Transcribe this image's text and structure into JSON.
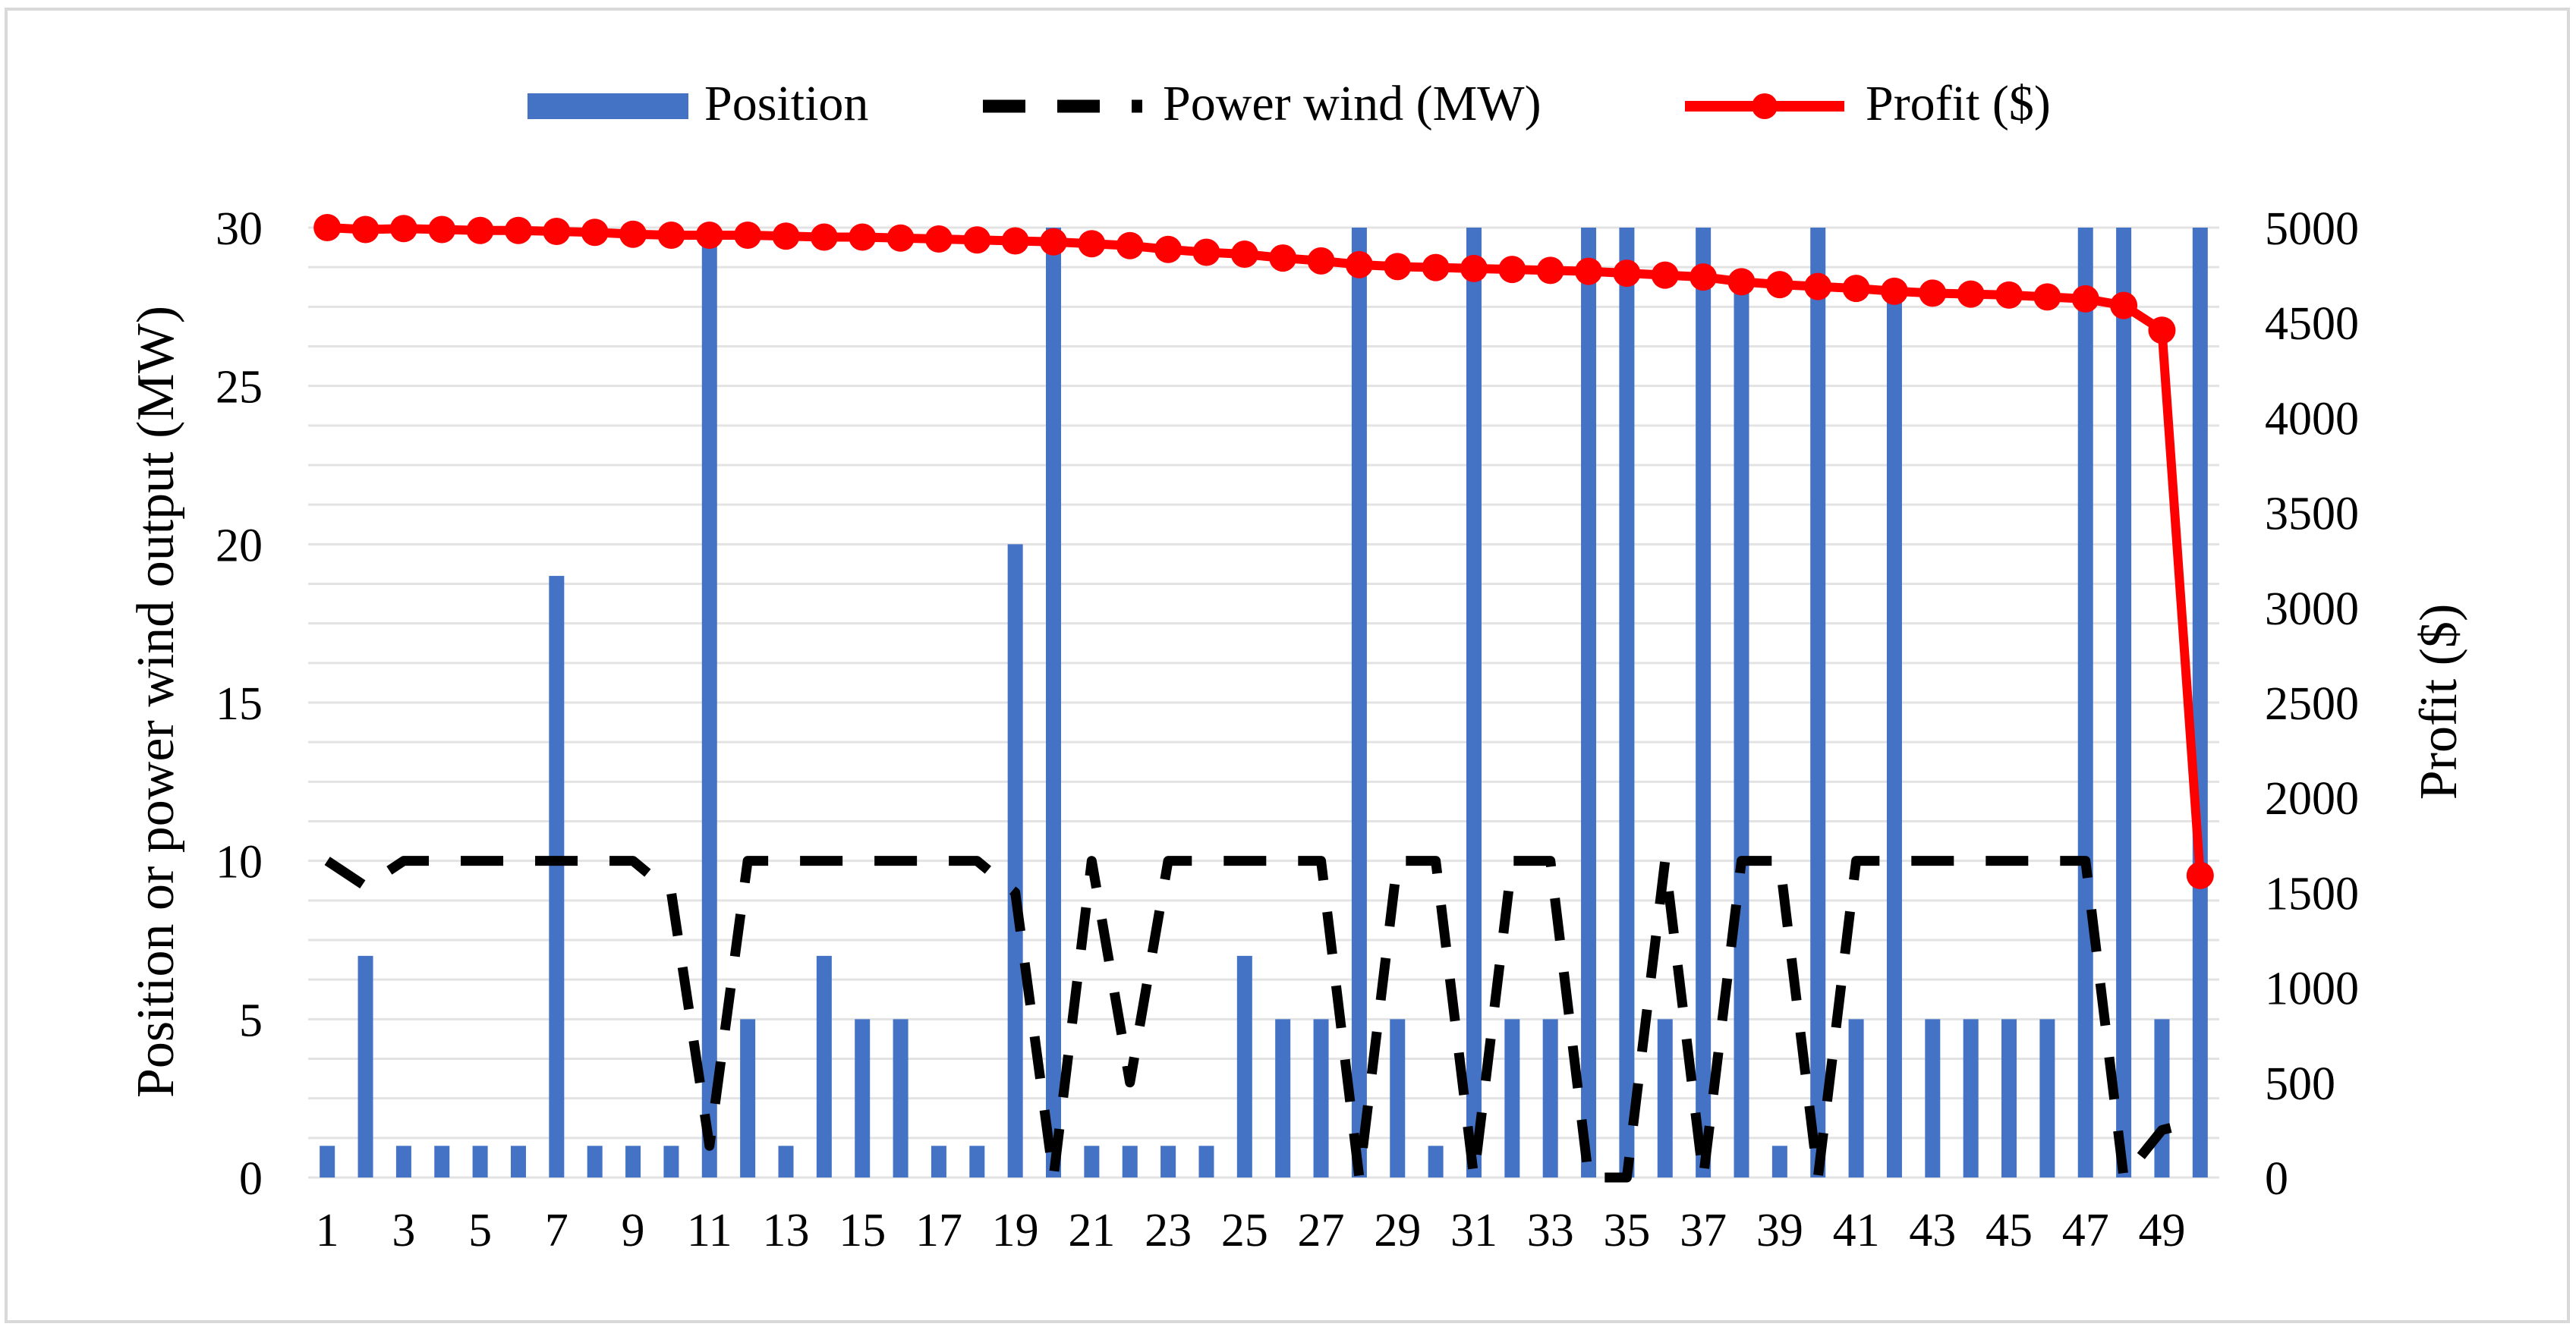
{
  "chart_data": {
    "type": "bar+line",
    "legend": [
      {
        "name": "Position",
        "kind": "bar",
        "color": "#4472C4"
      },
      {
        "name": "Power wind (MW)",
        "kind": "dashed-line",
        "color": "#000000"
      },
      {
        "name": "Profit ($)",
        "kind": "line-marker",
        "color": "#FF0000"
      }
    ],
    "legend_placement": "top-center",
    "ylabel_left": "Position or power wind output (MW)",
    "ylabel_right": "Profit ($)",
    "y_left_range": [
      0,
      30
    ],
    "y_right_range": [
      0,
      5000
    ],
    "y_left_ticks": [
      0,
      5,
      10,
      15,
      20,
      25,
      30
    ],
    "y_right_ticks": [
      0,
      500,
      1000,
      1500,
      2000,
      2500,
      3000,
      3500,
      4000,
      4500,
      5000
    ],
    "x_tick_labels": [
      "1",
      "3",
      "5",
      "7",
      "9",
      "11",
      "13",
      "15",
      "17",
      "19",
      "21",
      "23",
      "25",
      "27",
      "29",
      "31",
      "33",
      "35",
      "37",
      "39",
      "41",
      "43",
      "45",
      "47",
      "49"
    ],
    "x": [
      1,
      2,
      3,
      4,
      5,
      6,
      7,
      8,
      9,
      10,
      11,
      12,
      13,
      14,
      15,
      16,
      17,
      18,
      19,
      20,
      21,
      22,
      23,
      24,
      25,
      26,
      27,
      28,
      29,
      30,
      31,
      32,
      33,
      34,
      35,
      36,
      37,
      38,
      39,
      40,
      41,
      42,
      43,
      44,
      45,
      46,
      47,
      48,
      49,
      50
    ],
    "series": [
      {
        "name": "Position",
        "values": [
          1,
          7,
          1,
          1,
          1,
          1,
          19,
          1,
          1,
          1,
          30,
          5,
          1,
          7,
          5,
          5,
          1,
          1,
          20,
          30,
          1,
          1,
          1,
          1,
          7,
          5,
          5,
          30,
          5,
          1,
          30,
          5,
          5,
          30,
          30,
          5,
          30,
          28,
          1,
          30,
          5,
          28,
          5,
          5,
          5,
          5,
          30,
          30,
          5,
          30
        ]
      },
      {
        "name": "Power wind (MW)",
        "values": [
          10,
          9.2,
          10,
          10,
          10,
          10,
          10,
          10,
          10,
          9,
          1,
          10,
          10,
          10,
          10,
          10,
          10,
          10,
          9,
          0,
          10,
          3,
          10,
          10,
          10,
          10,
          10,
          0,
          10,
          10,
          0,
          10,
          10,
          0,
          0,
          10,
          0,
          10,
          10,
          0,
          10,
          10,
          10,
          10,
          10,
          10,
          10,
          0,
          1.5,
          1.8
        ]
      },
      {
        "name": "Profit ($)",
        "values": [
          5000,
          4990,
          4995,
          4990,
          4985,
          4985,
          4980,
          4975,
          4965,
          4960,
          4960,
          4960,
          4955,
          4950,
          4950,
          4945,
          4940,
          4935,
          4930,
          4925,
          4915,
          4905,
          4885,
          4870,
          4860,
          4840,
          4825,
          4805,
          4795,
          4790,
          4785,
          4780,
          4775,
          4770,
          4760,
          4750,
          4740,
          4715,
          4700,
          4690,
          4680,
          4665,
          4655,
          4650,
          4645,
          4635,
          4625,
          4590,
          4460,
          1590
        ]
      }
    ]
  }
}
